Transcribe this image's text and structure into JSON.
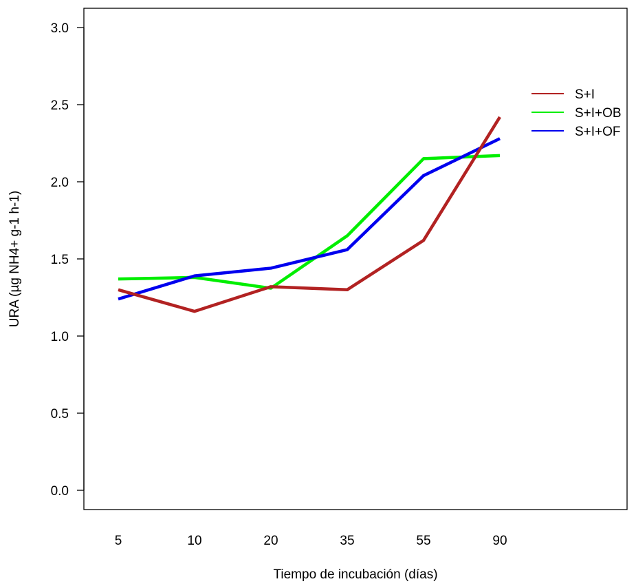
{
  "chart_data": {
    "type": "line",
    "xlabel": "Tiempo de incubación (días)",
    "ylabel": "URA (µg NH4+ g-1 h-1)",
    "categories": [
      "5",
      "10",
      "20",
      "35",
      "55",
      "90"
    ],
    "ylim": [
      0,
      3.0
    ],
    "yticks": [
      "0.0",
      "0.5",
      "1.0",
      "1.5",
      "2.0",
      "2.5",
      "3.0"
    ],
    "grid": false,
    "legend_position": "top-right",
    "series": [
      {
        "name": "S+I",
        "color": "#b22222",
        "values": [
          1.3,
          1.16,
          1.32,
          1.3,
          1.62,
          2.42
        ]
      },
      {
        "name": "S+I+OB",
        "color": "#00ee00",
        "values": [
          1.37,
          1.38,
          1.31,
          1.65,
          2.15,
          2.17
        ]
      },
      {
        "name": "S+I+OF",
        "color": "#0000ee",
        "values": [
          1.24,
          1.39,
          1.44,
          1.56,
          2.04,
          2.28
        ]
      }
    ]
  }
}
